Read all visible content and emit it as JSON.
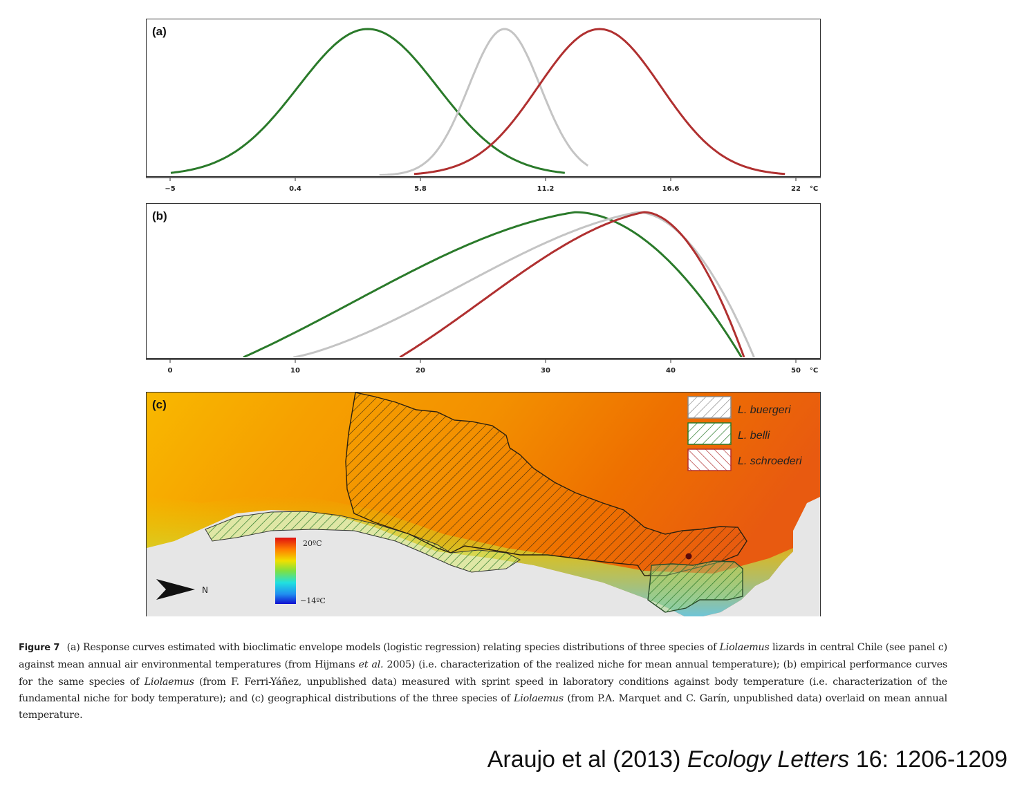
{
  "chart_data": [
    {
      "type": "line",
      "panel_label": "(a)",
      "xlabel": "°C",
      "x_ticks": [
        "−5",
        "0.4",
        "5.8",
        "11.2",
        "16.6",
        "22"
      ],
      "xlim": [
        -5,
        22
      ],
      "ylim": [
        0,
        1
      ],
      "series": [
        {
          "color": "#2a7a2a",
          "curve": "gaussian",
          "peak_x": 3.5,
          "sd": 3.0,
          "x_range": [
            -5,
            12
          ]
        },
        {
          "color": "#c4c4c4",
          "curve": "gaussian",
          "peak_x": 9.4,
          "sd": 1.55,
          "x_range": [
            4.0,
            13.0
          ]
        },
        {
          "color": "#b03030",
          "curve": "gaussian",
          "peak_x": 13.5,
          "sd": 2.65,
          "x_range": [
            5.5,
            21.5
          ]
        }
      ]
    },
    {
      "type": "line",
      "panel_label": "(b)",
      "xlabel": "°C",
      "x_ticks": [
        "0",
        "10",
        "20",
        "30",
        "40",
        "50"
      ],
      "xlim": [
        -2,
        52
      ],
      "ylim": [
        0,
        1
      ],
      "series": [
        {
          "color": "#2a7a2a",
          "peak_x": 32.3,
          "x_range": [
            5.8,
            45.6
          ]
        },
        {
          "color": "#c4c4c4",
          "peak_x": 37.3,
          "x_range": [
            9.8,
            46.6
          ]
        },
        {
          "color": "#b03030",
          "peak_x": 37.8,
          "x_range": [
            18.3,
            45.8
          ]
        }
      ]
    }
  ],
  "map": {
    "panel_label": "(c)",
    "legend": [
      {
        "label": "L. buergeri",
        "color": "#888888"
      },
      {
        "label": "L. belli",
        "color": "#2a7a2a"
      },
      {
        "label": "L. schroederi",
        "color": "#b03030"
      }
    ],
    "scale_max": "20ºC",
    "scale_min": "−14ºC",
    "north_label": "N"
  },
  "caption": {
    "figure_label": "Figure 7",
    "part1": "(a) Response curves estimated with bioclimatic envelope models (logistic regression) relating species distributions of three species of",
    "genus": "Liolaemus",
    "part2": "lizards in central Chile (see panel c) against mean annual air environmental temperatures (from Hijmans",
    "etal": "et al.",
    "part3": "2005) (i.e. characterization of the realized niche for mean annual temperature); (b) empirical performance curves for the same species of",
    "genus2": "Liolaemus",
    "part4": "(from F. Ferri-Yáñez, unpublished data) measured with sprint speed in laboratory conditions against body temperature (i.e. characterization of the fundamental niche for body temperature); and (c) geographical distributions of the three species of",
    "genus3": "Liolaemus",
    "part5": "(from P.A. Marquet and C. Garín, unpublished data) overlaid on mean annual temperature."
  },
  "citation": {
    "authors": "Araujo et al (2013)",
    "journal": "Ecology Letters",
    "volume": "16: 1206-1209"
  }
}
